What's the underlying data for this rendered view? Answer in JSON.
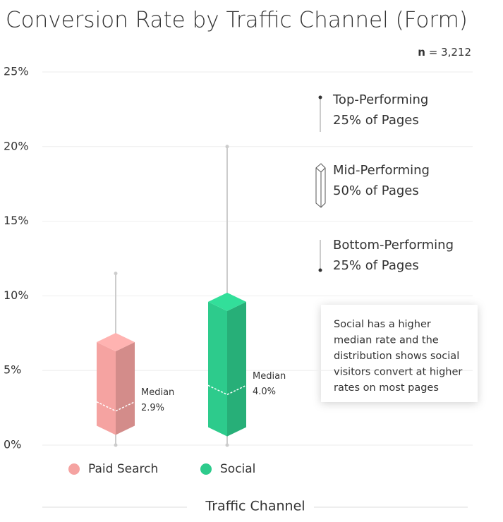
{
  "chart_data": {
    "type": "box",
    "title": "Conversion Rate by Traffic Channel (Form)",
    "n_symbol": "n",
    "n_value": "= 3,212",
    "x_label": "Traffic Channel",
    "ylim": [
      0,
      25
    ],
    "yticks": [
      {
        "value": 0,
        "label": "0%"
      },
      {
        "value": 5,
        "label": "5%"
      },
      {
        "value": 10,
        "label": "10%"
      },
      {
        "value": 15,
        "label": "15%"
      },
      {
        "value": 20,
        "label": "20%"
      },
      {
        "value": 25,
        "label": "25%"
      }
    ],
    "grid": true,
    "median_text": "Median",
    "series": [
      {
        "name": "Paid Search",
        "color": "#f5a3a1",
        "min": 0,
        "q1": 1.3,
        "median": 2.9,
        "q3": 6.9,
        "max": 11.5,
        "median_label": "2.9%"
      },
      {
        "name": "Social",
        "color": "#2dcb8c",
        "min": 0,
        "q1": 1.2,
        "median": 4.0,
        "q3": 9.6,
        "max": 20,
        "median_label": "4.0%"
      }
    ],
    "key": [
      [
        "Top-Performing",
        "25% of Pages"
      ],
      [
        "Mid-Performing",
        "50% of Pages"
      ],
      [
        "Bottom-Performing",
        "25% of Pages"
      ]
    ],
    "annotation": [
      "Social has a higher",
      "median rate and the",
      "distribution shows social",
      "visitors convert at higher",
      "rates on most pages"
    ]
  }
}
